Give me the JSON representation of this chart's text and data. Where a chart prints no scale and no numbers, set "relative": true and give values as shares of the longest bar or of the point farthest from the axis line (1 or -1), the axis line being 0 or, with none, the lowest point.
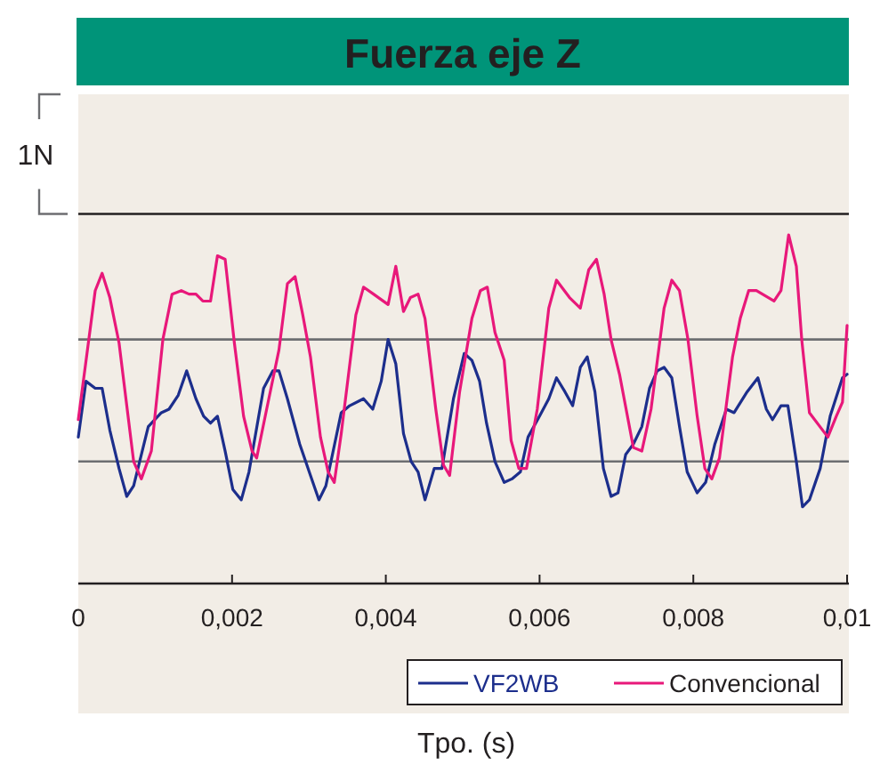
{
  "chart_data": {
    "type": "line",
    "title": "Fuerza eje Z",
    "xlabel": "Tpo. (s)",
    "relative": true,
    "x": [
      0,
      0.00022,
      0.00031,
      0.00041,
      0.00053,
      0.00072,
      0.00082,
      0.00095,
      0.0011,
      0.00122,
      0.00134,
      0.00144,
      0.00153,
      0.00162,
      0.00172,
      0.00181,
      0.00191,
      0.00203,
      0.00215,
      0.00226,
      0.00232,
      0.00245,
      0.00261,
      0.00272,
      0.00282,
      0.00292,
      0.00302,
      0.00315,
      0.00325,
      0.00333,
      0.00342,
      0.00361,
      0.00371,
      0.00384,
      0.00403,
      0.00413,
      0.00423,
      0.00432,
      0.00442,
      0.00451,
      0.00465,
      0.00475,
      0.00483,
      0.00496,
      0.00512,
      0.00523,
      0.00532,
      0.00542,
      0.00554,
      0.00563,
      0.00573,
      0.00583,
      0.00597,
      0.00612,
      0.00622,
      0.00639,
      0.00653,
      0.00664,
      0.00674,
      0.00684,
      0.00693,
      0.00704,
      0.00722,
      0.00733,
      0.00745,
      0.00762,
      0.00772,
      0.00782,
      0.00793,
      0.00805,
      0.00815,
      0.00824,
      0.00834,
      0.00851,
      0.00861,
      0.00872,
      0.00882,
      0.00905,
      0.00914,
      0.00924,
      0.00934,
      0.00941,
      0.00951,
      0.00975,
      0.00986,
      0.00994,
      0.01
    ],
    "series": [
      {
        "name": "VF2WB",
        "color": "#1c2e8c",
        "x": [
          0,
          0.0001,
          0.00022,
          0.00031,
          0.00041,
          0.00053,
          0.00063,
          0.00072,
          0.00091,
          0.00108,
          0.00118,
          0.0013,
          0.00141,
          0.00153,
          0.00163,
          0.00172,
          0.00181,
          0.00191,
          0.00201,
          0.00212,
          0.00222,
          0.00241,
          0.00253,
          0.00261,
          0.00272,
          0.00288,
          0.00302,
          0.00313,
          0.00322,
          0.00342,
          0.00353,
          0.00371,
          0.00383,
          0.00394,
          0.00403,
          0.00413,
          0.00423,
          0.00433,
          0.00442,
          0.00451,
          0.00463,
          0.00473,
          0.00488,
          0.00502,
          0.00512,
          0.00522,
          0.00531,
          0.00542,
          0.00554,
          0.00564,
          0.00575,
          0.00585,
          0.006,
          0.00612,
          0.00622,
          0.00633,
          0.00643,
          0.00653,
          0.00662,
          0.00672,
          0.00683,
          0.00693,
          0.00702,
          0.00712,
          0.00722,
          0.00733,
          0.00743,
          0.00753,
          0.00762,
          0.00772,
          0.00782,
          0.00792,
          0.00805,
          0.00816,
          0.00828,
          0.00843,
          0.00853,
          0.0087,
          0.00884,
          0.00895,
          0.00903,
          0.00914,
          0.00923,
          0.00934,
          0.00942,
          0.00951,
          0.00965,
          0.00978,
          0.00994,
          0.01
        ],
        "values": [
          0.42,
          0.58,
          0.56,
          0.56,
          0.44,
          0.33,
          0.25,
          0.28,
          0.45,
          0.49,
          0.5,
          0.54,
          0.61,
          0.53,
          0.48,
          0.46,
          0.48,
          0.38,
          0.27,
          0.24,
          0.32,
          0.56,
          0.61,
          0.61,
          0.53,
          0.4,
          0.31,
          0.24,
          0.28,
          0.49,
          0.51,
          0.53,
          0.5,
          0.58,
          0.7,
          0.63,
          0.43,
          0.35,
          0.32,
          0.24,
          0.33,
          0.33,
          0.53,
          0.66,
          0.64,
          0.58,
          0.46,
          0.35,
          0.29,
          0.3,
          0.32,
          0.42,
          0.48,
          0.53,
          0.59,
          0.55,
          0.51,
          0.62,
          0.65,
          0.55,
          0.33,
          0.25,
          0.26,
          0.37,
          0.4,
          0.45,
          0.56,
          0.61,
          0.62,
          0.59,
          0.45,
          0.32,
          0.26,
          0.29,
          0.4,
          0.5,
          0.49,
          0.55,
          0.59,
          0.5,
          0.47,
          0.51,
          0.51,
          0.35,
          0.22,
          0.24,
          0.33,
          0.48,
          0.59,
          0.6
        ]
      },
      {
        "name": "Convencional",
        "color": "#e8187a",
        "values": [
          0.47,
          0.84,
          0.89,
          0.82,
          0.69,
          0.35,
          0.3,
          0.38,
          0.7,
          0.83,
          0.84,
          0.83,
          0.83,
          0.81,
          0.81,
          0.94,
          0.93,
          0.69,
          0.48,
          0.38,
          0.36,
          0.5,
          0.67,
          0.86,
          0.88,
          0.77,
          0.65,
          0.42,
          0.32,
          0.29,
          0.43,
          0.77,
          0.85,
          0.83,
          0.8,
          0.91,
          0.78,
          0.82,
          0.83,
          0.76,
          0.5,
          0.34,
          0.31,
          0.55,
          0.76,
          0.84,
          0.85,
          0.72,
          0.64,
          0.41,
          0.33,
          0.33,
          0.5,
          0.79,
          0.87,
          0.82,
          0.79,
          0.9,
          0.93,
          0.83,
          0.7,
          0.6,
          0.39,
          0.38,
          0.5,
          0.79,
          0.87,
          0.84,
          0.7,
          0.48,
          0.33,
          0.3,
          0.36,
          0.65,
          0.76,
          0.84,
          0.84,
          0.81,
          0.84,
          1,
          0.91,
          0.7,
          0.49,
          0.42,
          0.48,
          0.52,
          0.74
        ]
      }
    ],
    "xlim": [
      0,
      0.01
    ],
    "xticks": [
      0,
      {
        "value": 0.002,
        "label": "0,002"
      },
      {
        "value": 0.004,
        "label": "0,004"
      },
      {
        "value": 0.006,
        "label": "0,006"
      },
      {
        "value": 0.008,
        "label": "0,008"
      },
      {
        "value": 0.01,
        "label": "0,01"
      }
    ],
    "ref_lines": [
      {
        "axis": "y",
        "value": 0.35,
        "color": "#6d6e71"
      },
      {
        "axis": "y",
        "value": 0.7,
        "color": "#6d6e71"
      },
      {
        "axis": "y",
        "value": 1.06,
        "color": "#231f20"
      }
    ],
    "annotations": [
      "1N"
    ],
    "legend": "bottom right",
    "line_style": "solid",
    "marker": "none"
  }
}
